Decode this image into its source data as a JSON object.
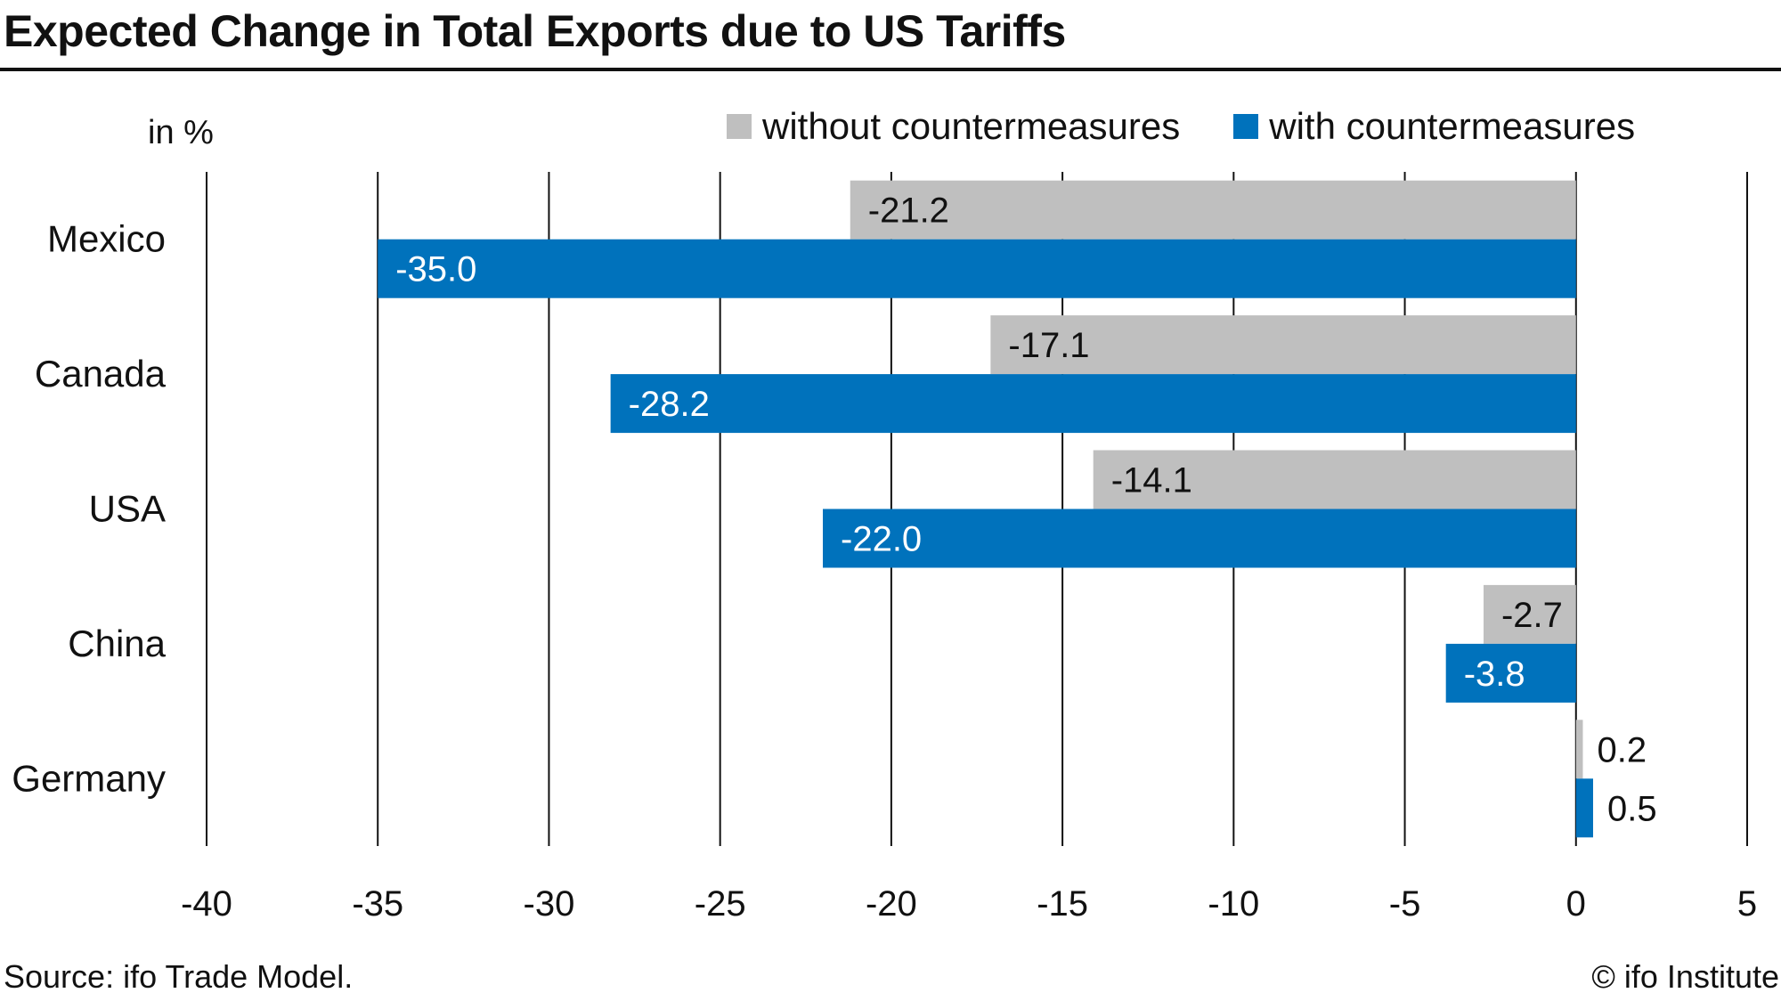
{
  "chart_data": {
    "type": "bar",
    "orientation": "horizontal",
    "title": "Expected Change in Total Exports due to US Tariffs",
    "unit_label": "in %",
    "categories": [
      "Mexico",
      "Canada",
      "USA",
      "China",
      "Germany"
    ],
    "series": [
      {
        "name": "without countermeasures",
        "color": "#bfbfbf",
        "label_color": "#111111",
        "values": [
          -21.2,
          -17.1,
          -14.1,
          -2.7,
          0.2
        ],
        "labels": [
          "-21.2",
          "-17.1",
          "-14.1",
          "-2.7",
          "0.2"
        ]
      },
      {
        "name": "with countermeasures",
        "color": "#0072bc",
        "label_color": "#ffffff",
        "values": [
          -35.0,
          -28.2,
          -22.0,
          -3.8,
          0.5
        ],
        "labels": [
          "-35.0",
          "-28.2",
          "-22.0",
          "-3.8",
          "0.5"
        ]
      }
    ],
    "xlim": [
      -40,
      5
    ],
    "xticks": [
      -40,
      -35,
      -30,
      -25,
      -20,
      -15,
      -10,
      -5,
      0,
      5
    ],
    "xtick_labels": [
      "-40",
      "-35",
      "-30",
      "-25",
      "-20",
      "-15",
      "-10",
      "-5",
      "0",
      "5"
    ],
    "grid": true,
    "legend_position": "top-right"
  },
  "footer": {
    "source": "Source: ifo Trade Model.",
    "credit": "© ifo Institute"
  }
}
